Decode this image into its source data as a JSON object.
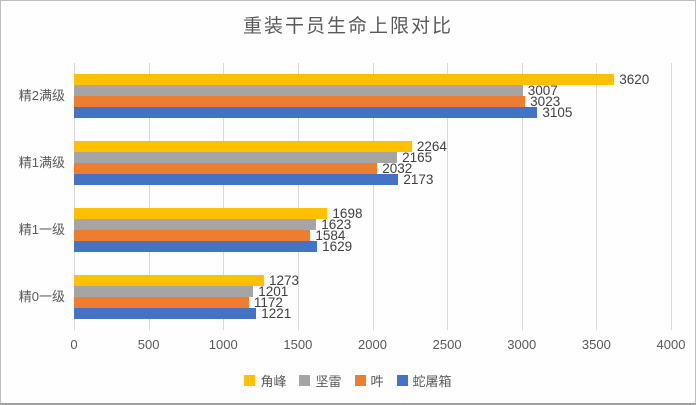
{
  "chart_data": {
    "type": "bar",
    "orientation": "horizontal",
    "title": "重装干员生命上限对比",
    "categories": [
      "精2满级",
      "精1满级",
      "精1一级",
      "精0一级"
    ],
    "series": [
      {
        "name": "角峰",
        "color": "#FFC000",
        "values": [
          3620,
          2264,
          1698,
          1273
        ]
      },
      {
        "name": "坚雷",
        "color": "#A5A5A5",
        "values": [
          3007,
          2165,
          1623,
          1201
        ]
      },
      {
        "name": "吽",
        "color": "#ED7D31",
        "values": [
          3023,
          2032,
          1584,
          1172
        ]
      },
      {
        "name": "蛇屠箱",
        "color": "#4472C4",
        "values": [
          3105,
          2173,
          1629,
          1221
        ]
      }
    ],
    "x_ticks": [
      0,
      500,
      1000,
      1500,
      2000,
      2500,
      3000,
      3500,
      4000
    ],
    "xlim": [
      0,
      4000
    ],
    "grid": true,
    "data_labels": true,
    "legend_position": "bottom"
  },
  "colors": {
    "grid": "#D9D9D9",
    "axis_text": "#595959",
    "title_text": "#595959",
    "value_label_text": "#404040",
    "background": "#FEFEFE",
    "border": "#BDBDBD"
  }
}
